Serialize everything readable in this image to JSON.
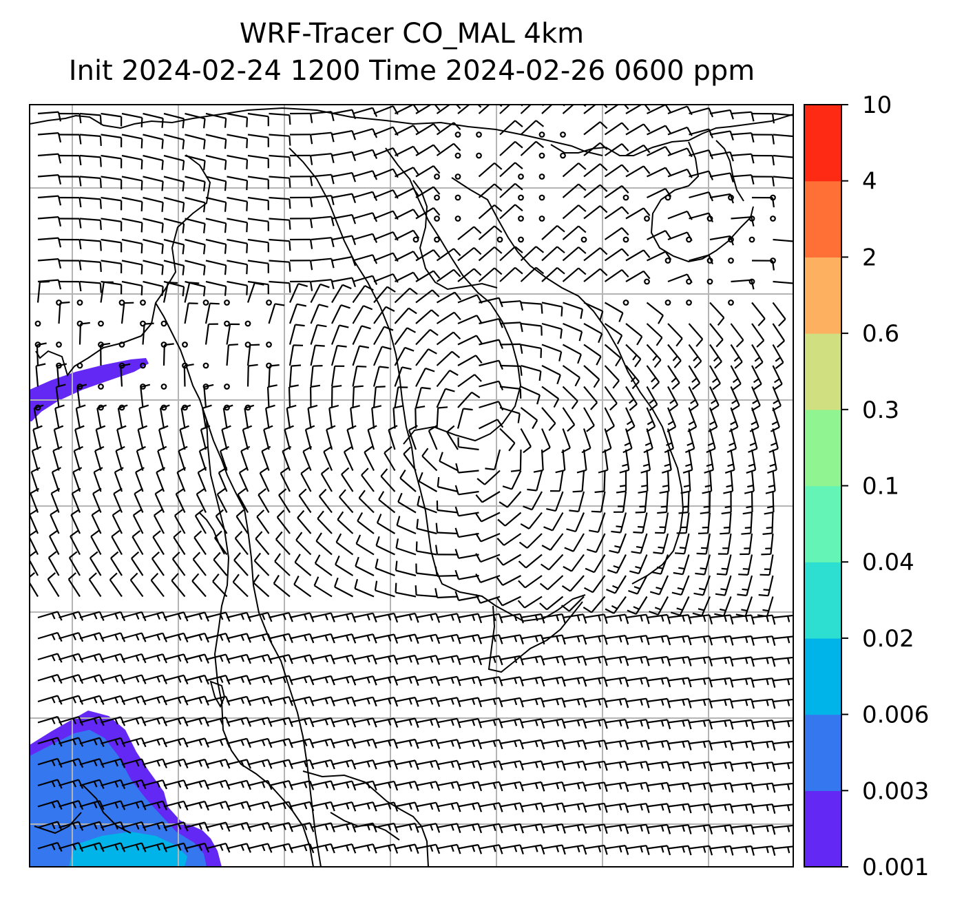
{
  "title": {
    "line1": "WRF-Tracer CO_MAL 4km",
    "line2": "Init 2024-02-24 1200 Time 2024-02-26 0600 ppm"
  },
  "colorbar": {
    "levels": [
      "0.001",
      "0.003",
      "0.006",
      "0.02",
      "0.04",
      "0.1",
      "0.3",
      "0.6",
      "2",
      "4",
      "10"
    ],
    "colors": [
      "#6428f5",
      "#3477ee",
      "#00b4ea",
      "#2ddfd0",
      "#64f5b6",
      "#90f590",
      "#d0e080",
      "#fdb060",
      "#fe7035",
      "#fe2a14"
    ]
  },
  "map": {
    "gridline_color": "#b4b4b4",
    "coastline_color": "#000000",
    "barb_color": "#000000",
    "plume_colors": {
      "outer": "#6428f5",
      "middle": "#3477ee",
      "core": "#00b4ea"
    }
  }
}
